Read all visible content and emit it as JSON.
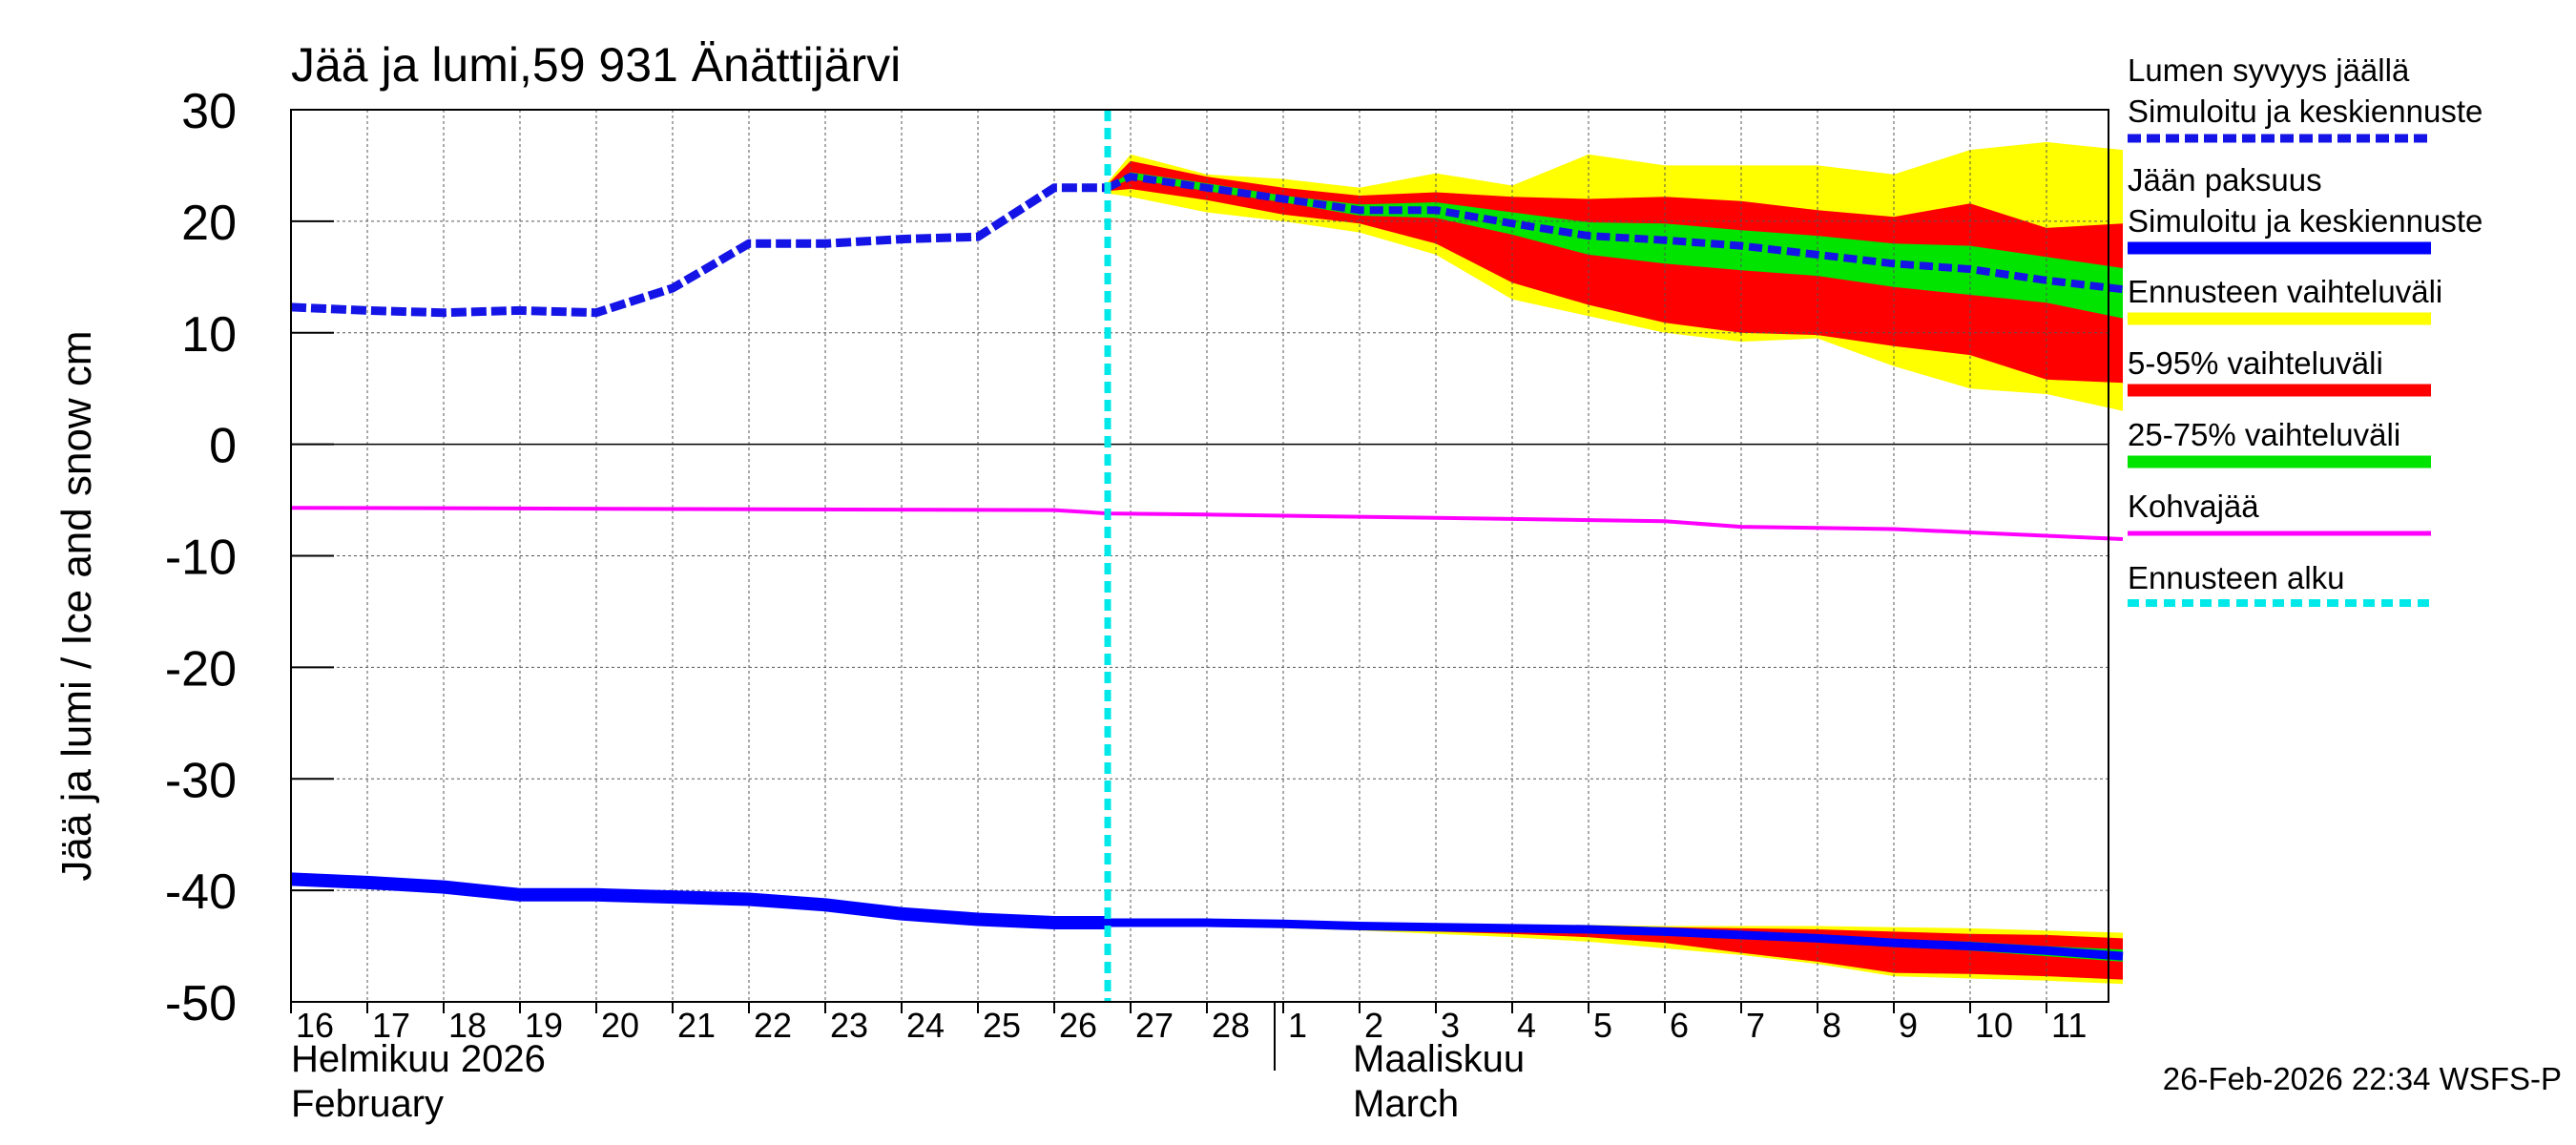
{
  "chart_data": {
    "type": "area",
    "title": "Jää ja lumi,59 931 Änättijärvi",
    "ylabel": "Jää ja lumi / Ice and snow    cm",
    "ylim": [
      -50,
      30
    ],
    "yticks": [
      30,
      20,
      10,
      0,
      -10,
      -20,
      -30,
      -40,
      -50
    ],
    "x_days": [
      "16",
      "17",
      "18",
      "19",
      "20",
      "21",
      "22",
      "23",
      "24",
      "25",
      "26",
      "27",
      "28",
      "1",
      "2",
      "3",
      "4",
      "5",
      "6",
      "7",
      "8",
      "9",
      "10",
      "11"
    ],
    "month_labels": {
      "feb_fi": "Helmikuu  2026",
      "feb_en": "February",
      "mar_fi": "Maaliskuu",
      "mar_en": "March"
    },
    "timestamp": "26-Feb-2026 22:34 WSFS-P",
    "forecast_start": 10.7,
    "colors": {
      "snow": "#1414e6",
      "ice": "#0000ff",
      "range_full": "#ffff00",
      "range_5_95": "#ff0000",
      "range_25_75": "#00e400",
      "slush": "#ff00ff",
      "forecast_start": "#00e8e8"
    },
    "legend": {
      "snow_title": "Lumen syvyys jäällä",
      "snow_label": "Simuloitu ja keskiennuste",
      "ice_title": "Jään paksuus",
      "ice_label": "Simuloitu ja keskiennuste",
      "full_label": "Ennusteen vaihteluväli",
      "p595_label": "5-95% vaihteluväli",
      "p2575_label": "25-75% vaihteluväli",
      "slush_label": "Kohvajää",
      "fstart_label": "Ennusteen alku"
    },
    "series": {
      "snow_observed": {
        "x": [
          0,
          1,
          2,
          3,
          4,
          5,
          6,
          7,
          8,
          9,
          10,
          10.7
        ],
        "y": [
          12.3,
          12.0,
          11.8,
          12.0,
          11.8,
          14.0,
          18.0,
          18.0,
          18.4,
          18.6,
          23.0,
          23.0
        ]
      },
      "snow_forecast": {
        "x": [
          10.7,
          11,
          12,
          13,
          14,
          15,
          16,
          17,
          18,
          19,
          20,
          21,
          22,
          23,
          24
        ],
        "y": [
          23.0,
          24.0,
          23.0,
          22.0,
          21.0,
          21.0,
          19.8,
          18.7,
          18.3,
          17.8,
          17.0,
          16.2,
          15.7,
          14.7,
          13.9
        ]
      },
      "snow_full_upper": [
        23.5,
        26.0,
        24.2,
        23.8,
        23.0,
        24.3,
        23.2,
        26.0,
        25.0,
        25.0,
        25.0,
        24.2,
        26.4,
        27.1,
        26.4
      ],
      "snow_full_lower": [
        22.5,
        22.2,
        20.8,
        20.0,
        19.0,
        17.0,
        13.0,
        11.5,
        10.0,
        9.2,
        9.5,
        7.0,
        5.0,
        4.5,
        3.0
      ],
      "snow_p95_upper": [
        23.3,
        25.4,
        24.0,
        23.0,
        22.3,
        22.6,
        22.2,
        22.0,
        22.2,
        21.8,
        21.0,
        20.4,
        21.6,
        19.4,
        19.8
      ],
      "snow_p95_lower": [
        22.7,
        22.9,
        21.9,
        20.6,
        19.8,
        18.0,
        14.5,
        12.5,
        10.9,
        10.0,
        9.8,
        8.8,
        8.0,
        5.8,
        5.5
      ],
      "snow_p75_upper": [
        23.1,
        24.4,
        23.4,
        22.3,
        21.5,
        21.7,
        20.8,
        19.9,
        19.8,
        19.2,
        18.7,
        18.0,
        17.8,
        16.8,
        15.8
      ],
      "snow_p75_lower": [
        22.9,
        23.8,
        22.7,
        21.7,
        20.5,
        20.3,
        18.8,
        17.0,
        16.2,
        15.6,
        15.1,
        14.1,
        13.4,
        12.7,
        11.3
      ],
      "ice_observed": {
        "x": [
          0,
          1,
          2,
          3,
          4,
          5,
          6,
          7,
          8,
          9,
          10,
          10.7
        ],
        "y": [
          -39.0,
          -39.3,
          -39.7,
          -40.4,
          -40.4,
          -40.6,
          -40.8,
          -41.3,
          -42.1,
          -42.6,
          -42.9,
          -42.9
        ]
      },
      "ice_forecast": {
        "x": [
          10.7,
          11,
          12,
          13,
          14,
          15,
          16,
          17,
          18,
          19,
          20,
          21,
          22,
          23,
          24
        ],
        "y": [
          -42.9,
          -42.9,
          -42.9,
          -43.0,
          -43.2,
          -43.3,
          -43.4,
          -43.5,
          -43.7,
          -44.0,
          -44.3,
          -44.7,
          -45.0,
          -45.4,
          -45.9
        ]
      },
      "ice_full_upper": [
        -42.8,
        -42.8,
        -42.8,
        -42.9,
        -43.0,
        -43.0,
        -43.1,
        -43.1,
        -43.2,
        -43.2,
        -43.2,
        -43.3,
        -43.4,
        -43.6,
        -43.8
      ],
      "ice_full_lower": [
        -43.0,
        -43.1,
        -43.2,
        -43.4,
        -43.6,
        -43.9,
        -44.2,
        -44.6,
        -45.2,
        -45.8,
        -46.6,
        -47.7,
        -47.9,
        -48.1,
        -48.4
      ],
      "ice_p95_upper": [
        -42.8,
        -42.8,
        -42.8,
        -42.9,
        -43.0,
        -43.0,
        -43.1,
        -43.2,
        -43.3,
        -43.4,
        -43.5,
        -43.7,
        -43.9,
        -44.0,
        -44.3
      ],
      "ice_p95_lower": [
        -43.0,
        -43.0,
        -43.1,
        -43.3,
        -43.5,
        -43.7,
        -43.9,
        -44.2,
        -44.7,
        -45.6,
        -46.4,
        -47.4,
        -47.5,
        -47.7,
        -48.0
      ],
      "ice_p75_upper": [
        -42.85,
        -42.85,
        -42.9,
        -43.0,
        -43.1,
        -43.2,
        -43.3,
        -43.4,
        -43.5,
        -43.7,
        -44.0,
        -44.4,
        -44.6,
        -45.0,
        -45.3
      ],
      "ice_p75_lower": [
        -42.95,
        -42.95,
        -43.0,
        -43.1,
        -43.3,
        -43.4,
        -43.5,
        -43.6,
        -43.9,
        -44.3,
        -44.6,
        -45.0,
        -45.4,
        -45.9,
        -46.4
      ],
      "slush": {
        "x": [
          0,
          10,
          10.7,
          12,
          14,
          16,
          18,
          19,
          20,
          21,
          22,
          23,
          24
        ],
        "y": [
          -5.7,
          -5.9,
          -6.2,
          -6.3,
          -6.5,
          -6.7,
          -6.9,
          -7.4,
          -7.5,
          -7.6,
          -7.9,
          -8.2,
          -8.5
        ]
      }
    }
  }
}
